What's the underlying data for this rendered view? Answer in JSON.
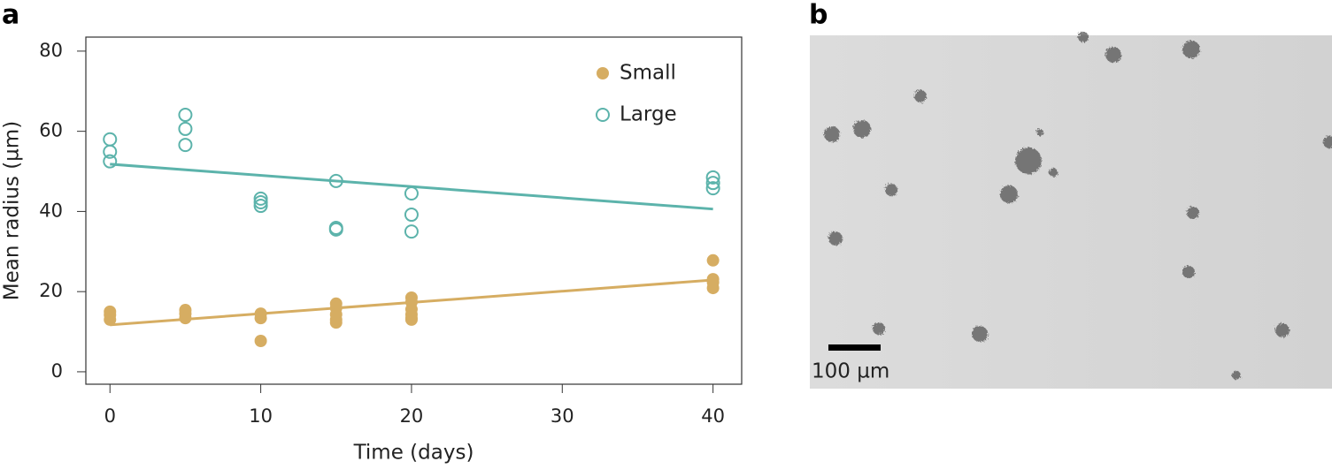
{
  "panel_labels": [
    "a",
    "b"
  ],
  "chart_data": {
    "type": "scatter",
    "xlabel": "Time (days)",
    "ylabel": "Mean radius (µm)",
    "xlim": [
      -1.6,
      41.9
    ],
    "ylim": [
      -3.1,
      83.5
    ],
    "xticks": [
      0,
      10,
      20,
      30,
      40
    ],
    "yticks": [
      0,
      20,
      40,
      60,
      80
    ],
    "legend": "upper right",
    "series": [
      {
        "name": "Small",
        "color": "#d6ad62",
        "marker": "filled",
        "x": [
          0,
          0,
          0,
          5,
          5,
          5,
          10,
          10,
          10,
          15,
          15,
          15,
          15,
          15,
          20,
          20,
          20,
          20,
          20,
          20,
          40,
          40,
          40,
          40
        ],
        "values": [
          15,
          14.2,
          13,
          15.4,
          14.5,
          13.4,
          14.5,
          13.4,
          7.7,
          17,
          15.9,
          14.3,
          13,
          12.3,
          18.5,
          17.4,
          15.6,
          14.3,
          13.4,
          13,
          27.8,
          23.1,
          22.3,
          20.9
        ],
        "fit": {
          "x": [
            0,
            40
          ],
          "values": [
            11.7,
            22.9
          ]
        }
      },
      {
        "name": "Large",
        "color": "#5cb3ab",
        "marker": "open",
        "x": [
          0,
          0,
          0,
          5,
          5,
          5,
          10,
          10,
          10,
          15,
          15,
          15,
          20,
          20,
          20,
          40,
          40,
          40
        ],
        "values": [
          58,
          54.9,
          52.5,
          64.1,
          60.6,
          56.6,
          43.2,
          42.3,
          41.4,
          47.6,
          35.9,
          35.5,
          44.5,
          39.2,
          35,
          48.5,
          47.1,
          45.8
        ],
        "fit": {
          "x": [
            0,
            40
          ],
          "values": [
            51.8,
            40.6
          ]
        }
      }
    ]
  },
  "image": {
    "scale_bar_label": "100 µm"
  }
}
